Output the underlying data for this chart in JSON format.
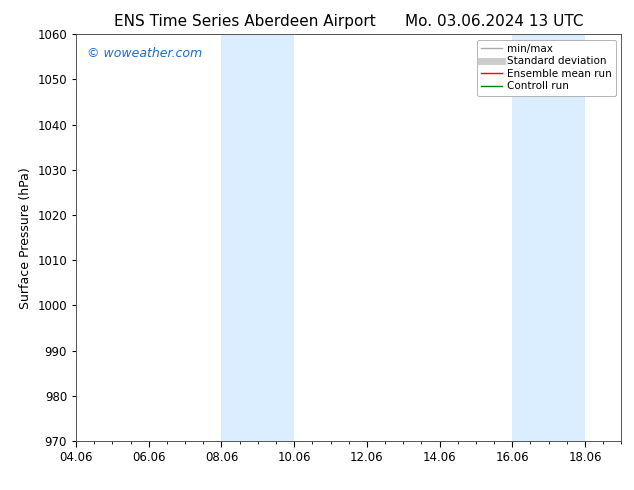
{
  "title_left": "ENS Time Series Aberdeen Airport",
  "title_right": "Mo. 03.06.2024 13 UTC",
  "ylabel": "Surface Pressure (hPa)",
  "ylim": [
    970,
    1060
  ],
  "yticks": [
    970,
    980,
    990,
    1000,
    1010,
    1020,
    1030,
    1040,
    1050,
    1060
  ],
  "xtick_labels": [
    "04.06",
    "06.06",
    "08.06",
    "10.06",
    "12.06",
    "14.06",
    "16.06",
    "18.06"
  ],
  "xtick_positions": [
    0,
    2,
    4,
    6,
    8,
    10,
    12,
    14
  ],
  "xlim": [
    0,
    15
  ],
  "watermark": "© woweather.com",
  "watermark_color": "#1a6fc4",
  "bg_color": "#ffffff",
  "plot_bg_color": "#ffffff",
  "shaded_bands": [
    {
      "x_start": 4.0,
      "x_end": 5.0,
      "color": "#daeeff"
    },
    {
      "x_start": 5.0,
      "x_end": 6.0,
      "color": "#daeeff"
    },
    {
      "x_start": 12.0,
      "x_end": 13.0,
      "color": "#daeeff"
    },
    {
      "x_start": 13.0,
      "x_end": 14.0,
      "color": "#daeeff"
    }
  ],
  "legend_items": [
    {
      "label": "min/max",
      "color": "#aaaaaa",
      "lw": 1.0,
      "style": "solid"
    },
    {
      "label": "Standard deviation",
      "color": "#cccccc",
      "lw": 5,
      "style": "solid"
    },
    {
      "label": "Ensemble mean run",
      "color": "#ff0000",
      "lw": 1.0,
      "style": "solid"
    },
    {
      "label": "Controll run",
      "color": "#008000",
      "lw": 1.0,
      "style": "solid"
    }
  ],
  "title_fontsize": 11,
  "axis_label_fontsize": 9,
  "tick_fontsize": 8.5,
  "watermark_fontsize": 9
}
